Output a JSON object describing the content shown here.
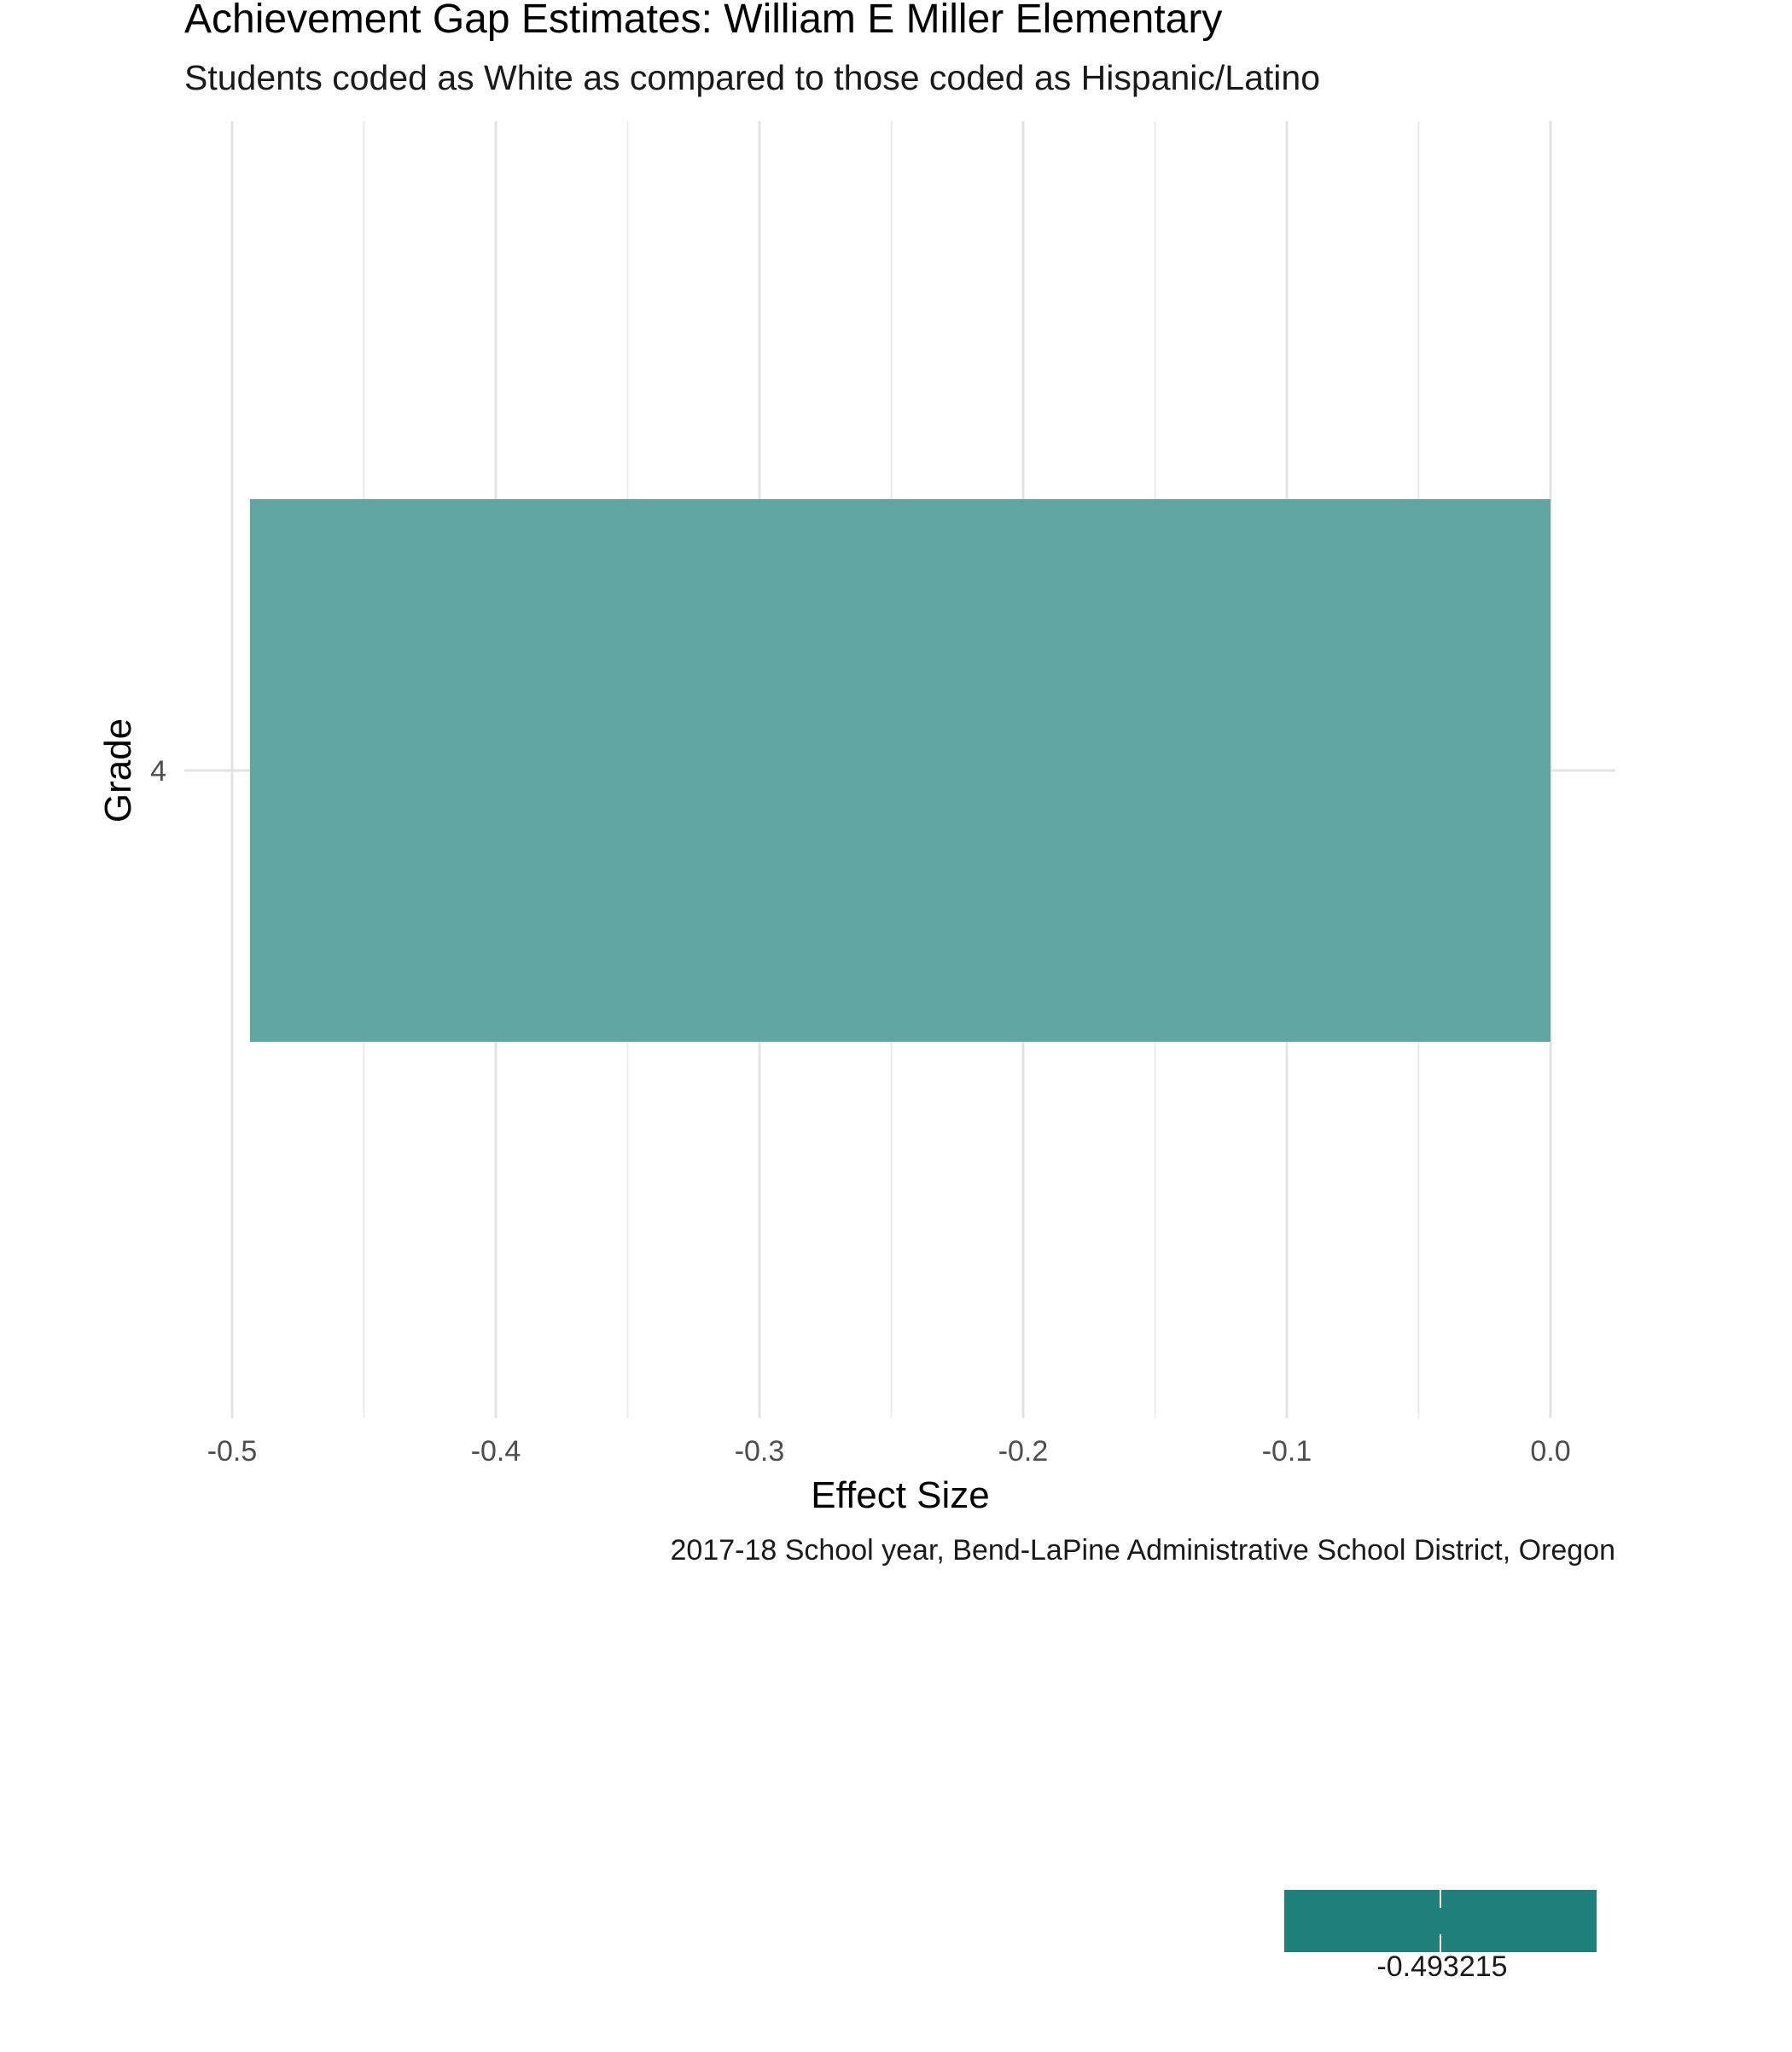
{
  "chart_data": {
    "type": "bar",
    "orientation": "horizontal",
    "title": "Achievement Gap Estimates: William E Miller Elementary",
    "subtitle": "Students coded as White as compared to those coded as Hispanic/Latino",
    "xlabel": "Effect Size",
    "ylabel": "Grade",
    "caption": "2017-18 School year, Bend-LaPine Administrative School District, Oregon",
    "categories": [
      "4"
    ],
    "values": [
      -0.493215
    ],
    "xlim": [
      -0.5,
      0.0
    ],
    "xticks": [
      -0.5,
      -0.4,
      -0.3,
      -0.2,
      -0.1,
      0.0
    ],
    "xtick_labels": [
      "-0.5",
      "-0.4",
      "-0.3",
      "-0.2",
      "-0.1",
      "0.0"
    ],
    "grid": true,
    "bar_color": "#5fa5a1",
    "legend": {
      "placement": "bottom-right",
      "type": "colorbar",
      "color": "#1f7f79",
      "labels": [
        "-0.493215"
      ]
    }
  }
}
